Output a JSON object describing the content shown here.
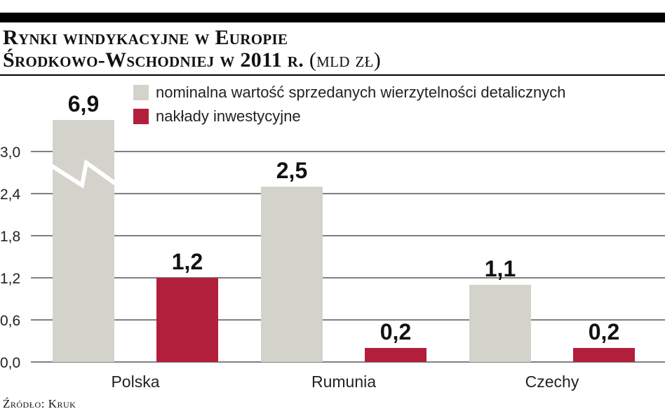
{
  "header": {
    "title_line1": "Rynki windykacyjne w Europie",
    "title_line2": "Środkowo-Wschodniej w 2011 r.",
    "title_unit": "(mld zł)"
  },
  "footer": {
    "source": "Źródło: Kruk"
  },
  "colors": {
    "nominal": "#d4d3cb",
    "invest": "#b21f3c",
    "grid": "#000000"
  },
  "chart_data": {
    "type": "bar",
    "categories": [
      "Polska",
      "Rumunia",
      "Czechy"
    ],
    "series": [
      {
        "name": "nominalna wartość sprzedanych wierzytelności detalicznych",
        "values": [
          6.9,
          2.5,
          1.1
        ],
        "labels": [
          "6,9",
          "2,5",
          "1,1"
        ]
      },
      {
        "name": "nakłady inwestycyjne",
        "values": [
          1.2,
          0.2,
          0.2
        ],
        "labels": [
          "1,2",
          "0,2",
          "0,2"
        ]
      }
    ],
    "ylim": [
      0,
      3.0
    ],
    "yticks": [
      0,
      0.6,
      1.2,
      1.8,
      2.4,
      3.0
    ],
    "ytick_labels": [
      "0,0",
      "0,6",
      "1,2",
      "1,8",
      "2,4",
      "3,0"
    ],
    "axis_break": {
      "category": "Polska",
      "series": "nominalna wartość sprzedanych wierzytelności detalicznych"
    },
    "grid": true,
    "legend": "top"
  }
}
